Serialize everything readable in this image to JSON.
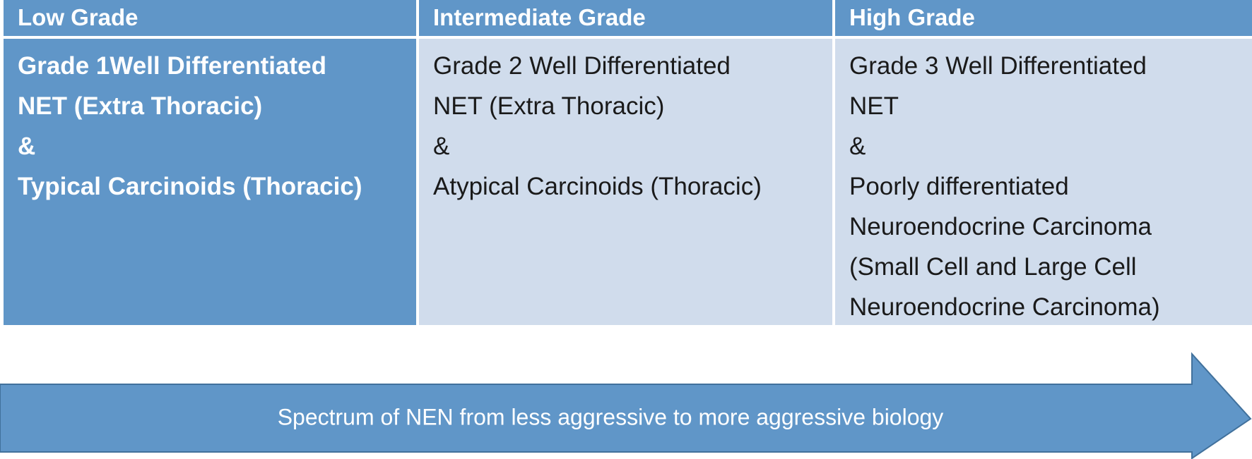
{
  "table": {
    "headers": [
      "Low Grade",
      "Intermediate Grade",
      "High Grade"
    ],
    "cells": [
      [
        "Grade 1Well Differentiated",
        "NET (Extra Thoracic)",
        "&",
        "Typical Carcinoids (Thoracic)"
      ],
      [
        "Grade 2 Well Differentiated",
        "NET (Extra Thoracic)",
        "&",
        "Atypical Carcinoids (Thoracic)"
      ],
      [
        "Grade 3 Well Differentiated",
        "NET",
        "&",
        "Poorly differentiated",
        "Neuroendocrine Carcinoma",
        "(Small Cell and Large Cell",
        "Neuroendocrine Carcinoma)"
      ]
    ]
  },
  "arrow": {
    "label": "Spectrum of NEN from less aggressive to more aggressive biology"
  }
}
